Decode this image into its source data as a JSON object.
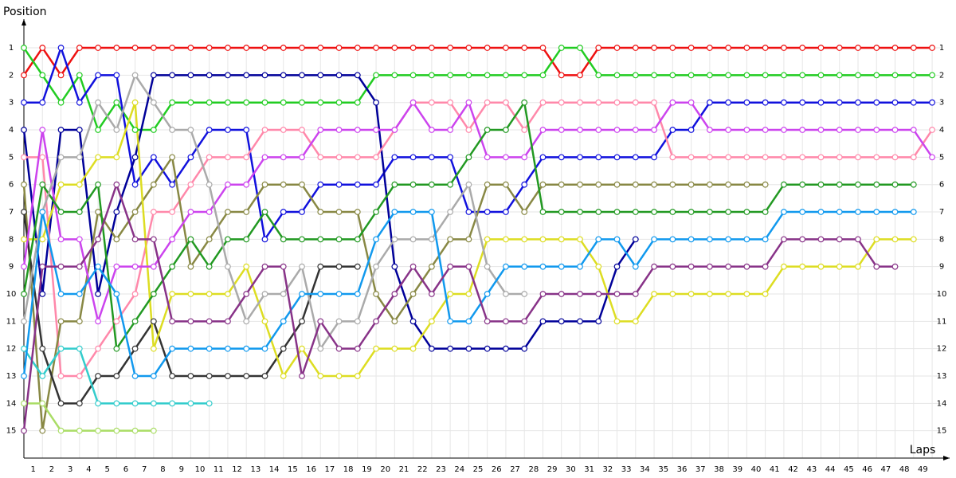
{
  "chart_data": {
    "type": "line",
    "y_label": "Position",
    "x_label": "Laps",
    "x": [
      0,
      1,
      2,
      3,
      4,
      5,
      6,
      7,
      8,
      9,
      10,
      11,
      12,
      13,
      14,
      15,
      16,
      17,
      18,
      19,
      20,
      21,
      22,
      23,
      24,
      25,
      26,
      27,
      28,
      29,
      30,
      31,
      32,
      33,
      34,
      35,
      36,
      37,
      38,
      39,
      40,
      41,
      42,
      43,
      44,
      45,
      46,
      47,
      48,
      49
    ],
    "xlim": [
      0,
      49.9
    ],
    "ylim": [
      16,
      0
    ],
    "xticks": [
      1,
      2,
      3,
      4,
      5,
      6,
      7,
      8,
      9,
      10,
      11,
      12,
      13,
      14,
      15,
      16,
      17,
      18,
      19,
      20,
      21,
      22,
      23,
      24,
      25,
      26,
      27,
      28,
      29,
      30,
      31,
      32,
      33,
      34,
      35,
      36,
      37,
      38,
      39,
      40,
      41,
      42,
      43,
      44,
      45,
      46,
      47,
      48,
      49
    ],
    "yticks": [
      1,
      2,
      3,
      4,
      5,
      6,
      7,
      8,
      9,
      10,
      11,
      12,
      13,
      14,
      15
    ],
    "grid": true,
    "series": [
      {
        "color": "#ee1111",
        "values": [
          2,
          1,
          2,
          1,
          1,
          1,
          1,
          1,
          1,
          1,
          1,
          1,
          1,
          1,
          1,
          1,
          1,
          1,
          1,
          1,
          1,
          1,
          1,
          1,
          1,
          1,
          1,
          1,
          1,
          2,
          2,
          1,
          1,
          1,
          1,
          1,
          1,
          1,
          1,
          1,
          1,
          1,
          1,
          1,
          1,
          1,
          1,
          1,
          1,
          1
        ]
      },
      {
        "color": "#22cc22",
        "values": [
          1,
          2,
          3,
          2,
          4,
          3,
          4,
          4,
          3,
          3,
          3,
          3,
          3,
          3,
          3,
          3,
          3,
          3,
          3,
          2,
          2,
          2,
          2,
          2,
          2,
          2,
          2,
          2,
          2,
          1,
          1,
          2,
          2,
          2,
          2,
          2,
          2,
          2,
          2,
          2,
          2,
          2,
          2,
          2,
          2,
          2,
          2,
          2,
          2,
          2
        ]
      },
      {
        "color": "#1111dd",
        "values": [
          3,
          3,
          1,
          3,
          2,
          2,
          6,
          5,
          6,
          5,
          4,
          4,
          4,
          8,
          7,
          7,
          6,
          6,
          6,
          6,
          5,
          5,
          5,
          5,
          7,
          7,
          7,
          6,
          5,
          5,
          5,
          5,
          5,
          5,
          5,
          4,
          4,
          3,
          3,
          3,
          3,
          3,
          3,
          3,
          3,
          3,
          3,
          3,
          3,
          3
        ]
      },
      {
        "color": "#000099",
        "values": [
          4,
          10,
          4,
          4,
          10,
          7,
          5,
          2,
          2,
          2,
          2,
          2,
          2,
          2,
          2,
          2,
          2,
          2,
          2,
          3,
          9,
          11,
          12,
          12,
          12,
          12,
          12,
          12,
          11,
          11,
          11,
          11,
          9,
          8,
          null,
          null,
          null,
          null,
          null,
          null,
          null,
          null,
          null,
          null,
          null,
          null,
          null,
          null,
          null,
          null
        ]
      },
      {
        "color": "#ff88aa",
        "values": [
          5,
          5,
          13,
          13,
          12,
          11,
          10,
          7,
          7,
          6,
          5,
          5,
          5,
          4,
          4,
          4,
          5,
          5,
          5,
          5,
          4,
          3,
          3,
          3,
          4,
          3,
          3,
          4,
          3,
          3,
          3,
          3,
          3,
          3,
          3,
          5,
          5,
          5,
          5,
          5,
          5,
          5,
          5,
          5,
          5,
          5,
          5,
          5,
          5,
          4
        ]
      },
      {
        "color": "#888844",
        "values": [
          6,
          15,
          11,
          11,
          7,
          8,
          7,
          6,
          5,
          9,
          8,
          7,
          7,
          6,
          6,
          6,
          7,
          7,
          7,
          10,
          11,
          10,
          9,
          8,
          8,
          6,
          6,
          7,
          6,
          6,
          6,
          6,
          6,
          6,
          6,
          6,
          6,
          6,
          6,
          6,
          6,
          null,
          null,
          null,
          null,
          null,
          null,
          null,
          null,
          null
        ]
      },
      {
        "color": "#333333",
        "values": [
          7,
          12,
          14,
          14,
          13,
          13,
          12,
          11,
          13,
          13,
          13,
          13,
          13,
          13,
          12,
          11,
          9,
          9,
          9,
          null,
          null,
          null,
          null,
          null,
          null,
          null,
          null,
          null,
          null,
          null,
          null,
          null,
          null,
          null,
          null,
          null,
          null,
          null,
          null,
          null,
          null,
          null,
          null,
          null,
          null,
          null,
          null,
          null,
          null,
          null
        ]
      },
      {
        "color": "#dddd22",
        "values": [
          8,
          8,
          6,
          6,
          5,
          5,
          3,
          12,
          10,
          10,
          10,
          10,
          9,
          11,
          13,
          12,
          13,
          13,
          13,
          12,
          12,
          12,
          11,
          10,
          10,
          8,
          8,
          8,
          8,
          8,
          8,
          9,
          11,
          11,
          10,
          10,
          10,
          10,
          10,
          10,
          10,
          9,
          9,
          9,
          9,
          9,
          8,
          8,
          8,
          null
        ]
      },
      {
        "color": "#cc44ee",
        "values": [
          9,
          4,
          8,
          8,
          11,
          9,
          9,
          9,
          8,
          7,
          7,
          6,
          6,
          5,
          5,
          5,
          4,
          4,
          4,
          4,
          4,
          3,
          4,
          4,
          3,
          5,
          5,
          5,
          4,
          4,
          4,
          4,
          4,
          4,
          4,
          3,
          3,
          4,
          4,
          4,
          4,
          4,
          4,
          4,
          4,
          4,
          4,
          4,
          4,
          5
        ]
      },
      {
        "color": "#229922",
        "values": [
          10,
          6,
          7,
          7,
          6,
          12,
          11,
          10,
          9,
          8,
          9,
          8,
          8,
          7,
          8,
          8,
          8,
          8,
          8,
          7,
          6,
          6,
          6,
          6,
          5,
          4,
          4,
          3,
          7,
          7,
          7,
          7,
          7,
          7,
          7,
          7,
          7,
          7,
          7,
          7,
          7,
          6,
          6,
          6,
          6,
          6,
          6,
          6,
          6,
          null
        ]
      },
      {
        "color": "#aaaaaa",
        "values": [
          11,
          7,
          5,
          5,
          3,
          4,
          2,
          3,
          4,
          4,
          6,
          9,
          11,
          10,
          10,
          9,
          12,
          11,
          11,
          9,
          8,
          8,
          8,
          7,
          6,
          9,
          10,
          10,
          null,
          null,
          null,
          null,
          null,
          null,
          null,
          null,
          null,
          null,
          null,
          null,
          null,
          null,
          null,
          null,
          null,
          null,
          null,
          null,
          null,
          null
        ]
      },
      {
        "color": "#33cccc",
        "values": [
          12,
          13,
          12,
          12,
          14,
          14,
          14,
          14,
          14,
          14,
          14,
          null,
          null,
          null,
          null,
          null,
          null,
          null,
          null,
          null,
          null,
          null,
          null,
          null,
          null,
          null,
          null,
          null,
          null,
          null,
          null,
          null,
          null,
          null,
          null,
          null,
          null,
          null,
          null,
          null,
          null,
          null,
          null,
          null,
          null,
          null,
          null,
          null,
          null,
          null
        ]
      },
      {
        "color": "#1199ee",
        "values": [
          13,
          7,
          10,
          10,
          9,
          10,
          13,
          13,
          12,
          12,
          12,
          12,
          12,
          12,
          11,
          10,
          10,
          10,
          10,
          8,
          7,
          7,
          7,
          11,
          11,
          10,
          9,
          9,
          9,
          9,
          9,
          8,
          8,
          9,
          8,
          8,
          8,
          8,
          8,
          8,
          8,
          7,
          7,
          7,
          7,
          7,
          7,
          7,
          7,
          null
        ]
      },
      {
        "color": "#aadd66",
        "values": [
          14,
          14,
          15,
          15,
          15,
          15,
          15,
          15,
          null,
          null,
          null,
          null,
          null,
          null,
          null,
          null,
          null,
          null,
          null,
          null,
          null,
          null,
          null,
          null,
          null,
          null,
          null,
          null,
          null,
          null,
          null,
          null,
          null,
          null,
          null,
          null,
          null,
          null,
          null,
          null,
          null,
          null,
          null,
          null,
          null,
          null,
          null,
          null,
          null,
          null
        ]
      },
      {
        "color": "#883388",
        "values": [
          15,
          9,
          9,
          9,
          8,
          6,
          8,
          8,
          11,
          11,
          11,
          11,
          10,
          9,
          9,
          13,
          11,
          12,
          12,
          11,
          10,
          9,
          10,
          9,
          9,
          11,
          11,
          11,
          10,
          10,
          10,
          10,
          10,
          10,
          9,
          9,
          9,
          9,
          9,
          9,
          9,
          8,
          8,
          8,
          8,
          8,
          9,
          9,
          null,
          null
        ]
      }
    ]
  }
}
